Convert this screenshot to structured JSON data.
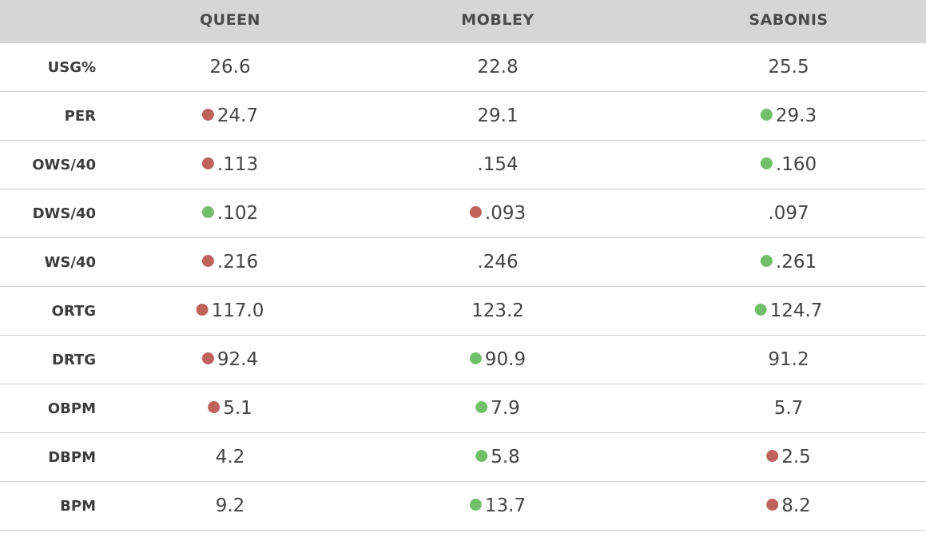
{
  "chart_data": {
    "type": "table",
    "columns": [
      "QUEEN",
      "MOBLEY",
      "SABONIS"
    ],
    "rows": [
      {
        "metric": "USG%",
        "values": [
          "26.6",
          "22.8",
          "25.5"
        ],
        "markers": [
          "",
          "",
          ""
        ]
      },
      {
        "metric": "PER",
        "values": [
          "24.7",
          "29.1",
          "29.3"
        ],
        "markers": [
          "red",
          "",
          "green"
        ]
      },
      {
        "metric": "OWS/40",
        "values": [
          ".113",
          ".154",
          ".160"
        ],
        "markers": [
          "red",
          "",
          "green"
        ]
      },
      {
        "metric": "DWS/40",
        "values": [
          ".102",
          ".093",
          ".097"
        ],
        "markers": [
          "green",
          "red",
          ""
        ]
      },
      {
        "metric": "WS/40",
        "values": [
          ".216",
          ".246",
          ".261"
        ],
        "markers": [
          "red",
          "",
          "green"
        ]
      },
      {
        "metric": "ORTG",
        "values": [
          "117.0",
          "123.2",
          "124.7"
        ],
        "markers": [
          "red",
          "",
          "green"
        ]
      },
      {
        "metric": "DRTG",
        "values": [
          "92.4",
          "90.9",
          "91.2"
        ],
        "markers": [
          "red",
          "green",
          ""
        ]
      },
      {
        "metric": "OBPM",
        "values": [
          "5.1",
          "7.9",
          "5.7"
        ],
        "markers": [
          "red",
          "green",
          ""
        ]
      },
      {
        "metric": "DBPM",
        "values": [
          "4.2",
          "5.8",
          "2.5"
        ],
        "markers": [
          "",
          "green",
          "red"
        ]
      },
      {
        "metric": "BPM",
        "values": [
          "9.2",
          "13.7",
          "8.2"
        ],
        "markers": [
          "",
          "green",
          "red"
        ]
      }
    ],
    "colors": {
      "red": "#c0625c",
      "green": "#72bf6a",
      "header_bg": "#d6d6d6"
    }
  }
}
